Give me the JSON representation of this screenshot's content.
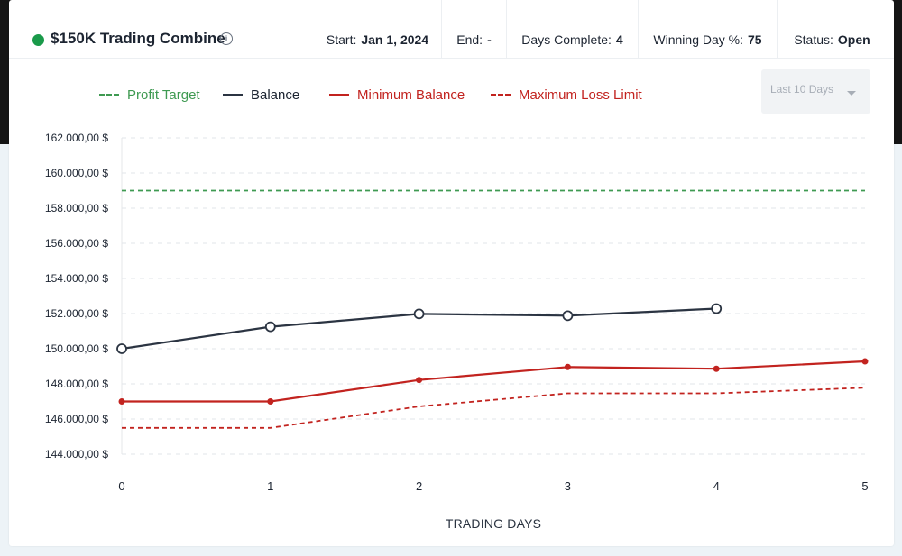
{
  "header": {
    "title": "$150K Trading Combine",
    "info_icon": "info-icon",
    "status_color": "#1a9a4a",
    "start_label": "Start:",
    "start_value": "Jan 1, 2024",
    "end_label": "End:",
    "end_value": "-",
    "days_label": "Days Complete:",
    "days_value": "4",
    "winning_label": "Winning Day %:",
    "winning_value": "75",
    "status_label": "Status:",
    "status_value": "Open"
  },
  "range_select": {
    "selected": "Last 10 Days"
  },
  "chart_data": {
    "type": "line",
    "xlabel": "TRADING DAYS",
    "ylabel": "",
    "x": [
      0,
      1,
      2,
      3,
      4,
      5
    ],
    "xlim": [
      0,
      5
    ],
    "ylim": [
      144000,
      162000
    ],
    "yticks": [
      144000,
      146000,
      148000,
      150000,
      152000,
      154000,
      156000,
      158000,
      160000,
      162000
    ],
    "ytick_labels": [
      "144.000,00 $",
      "146.000,00 $",
      "148.000,00 $",
      "150.000,00 $",
      "152.000,00 $",
      "154.000,00 $",
      "156.000,00 $",
      "158.000,00 $",
      "160.000,00 $",
      "162.000,00 $"
    ],
    "grid": true,
    "legend_position": "top-left",
    "series": [
      {
        "name": "Profit Target",
        "style": "dashed",
        "color": "#3f9a52",
        "x": [
          0,
          5
        ],
        "values": [
          159000,
          159000
        ]
      },
      {
        "name": "Balance",
        "style": "solid",
        "color": "#2b3442",
        "marker": "hollow-circle",
        "x": [
          0,
          1,
          2,
          3,
          4
        ],
        "values": [
          150000,
          151250,
          151980,
          151880,
          152280
        ]
      },
      {
        "name": "Minimum Balance",
        "style": "solid",
        "color": "#c2231f",
        "marker": "dot",
        "x": [
          0,
          1,
          2,
          3,
          4,
          5
        ],
        "values": [
          147000,
          147000,
          148220,
          148960,
          148860,
          149280
        ]
      },
      {
        "name": "Maximum Loss Limit",
        "style": "dashed",
        "color": "#c2231f",
        "x": [
          0,
          1,
          2,
          3,
          4,
          5
        ],
        "values": [
          145500,
          145500,
          146720,
          147460,
          147460,
          147780
        ]
      }
    ]
  }
}
